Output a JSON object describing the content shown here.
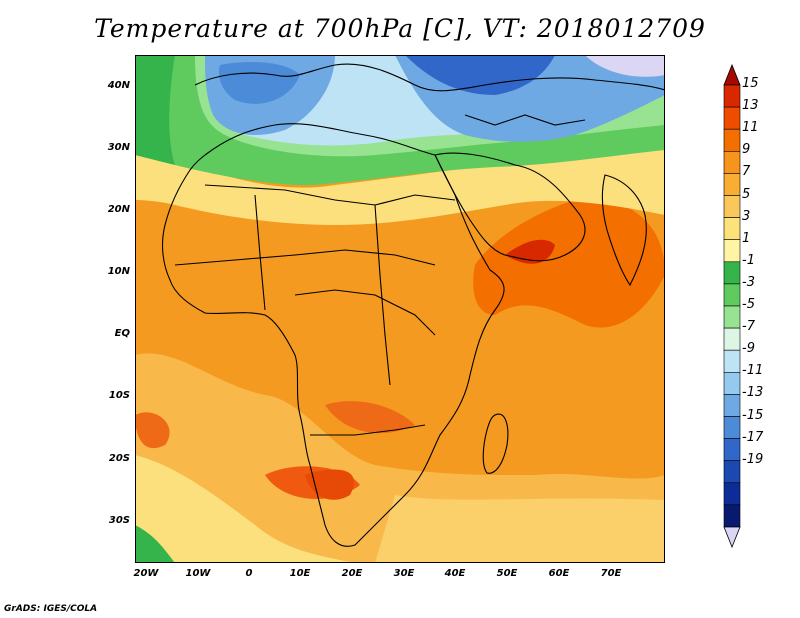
{
  "title": "Temperature at 700hPa [C], VT: 2018012709",
  "credit": "GrADS: IGES/COLA",
  "lat_labels": [
    "40N",
    "30N",
    "20N",
    "10N",
    "EQ",
    "10S",
    "20S",
    "30S"
  ],
  "lon_labels": [
    "20W",
    "10W",
    "0",
    "10E",
    "20E",
    "30E",
    "40E",
    "50E",
    "60E",
    "70E"
  ],
  "colorbar": {
    "labels": [
      "15",
      "13",
      "11",
      "9",
      "7",
      "5",
      "3",
      "1",
      "-1",
      "-3",
      "-5",
      "-7",
      "-9",
      "-11",
      "-13",
      "-15",
      "-17",
      "-19"
    ],
    "colors": [
      "#a50a00",
      "#d82800",
      "#ef4c00",
      "#f36f00",
      "#f7941d",
      "#f9ad33",
      "#fac85a",
      "#fde27a",
      "#fff5a4",
      "#34b44a",
      "#5fcb5f",
      "#98e391",
      "#dcf5e4",
      "#bde3f5",
      "#96c9ef",
      "#6ea9e4",
      "#4c8bd8",
      "#3067c8",
      "#1c48b2",
      "#0d2c97",
      "#071a6f",
      "#dcd6f5"
    ]
  }
}
